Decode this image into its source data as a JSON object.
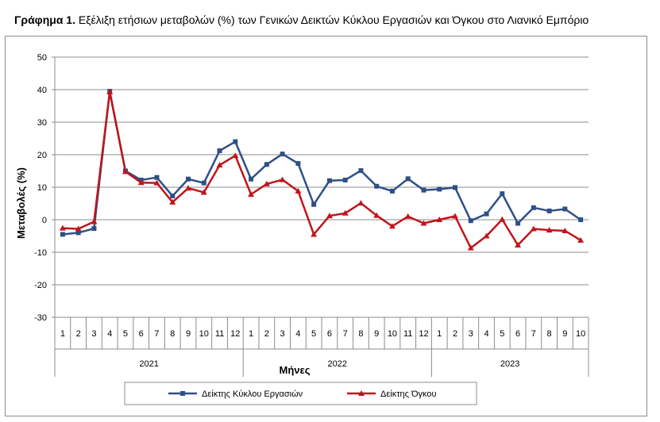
{
  "title": {
    "prefix": "Γράφημα 1.",
    "text": "Εξέλιξη ετήσιων μεταβολών (%) των Γενικών Δεικτών Κύκλου Εργασιών και Όγκου στο Λιανικό Εμπόριο"
  },
  "chart_data": {
    "type": "line",
    "ylabel": "Μεταβολές  (%)",
    "xlabel": "Μήνες",
    "ylim": [
      -30,
      50
    ],
    "yticks": [
      -30,
      -20,
      -10,
      0,
      10,
      20,
      30,
      40,
      50
    ],
    "grid": true,
    "legend_position": "bottom",
    "categories": [
      "1",
      "2",
      "3",
      "4",
      "5",
      "6",
      "7",
      "8",
      "9",
      "10",
      "11",
      "12",
      "1",
      "2",
      "3",
      "4",
      "5",
      "6",
      "7",
      "8",
      "9",
      "10",
      "11",
      "12",
      "1",
      "2",
      "3",
      "4",
      "5",
      "6",
      "7",
      "8",
      "9",
      "10"
    ],
    "years": [
      {
        "label": "2021",
        "count": 12
      },
      {
        "label": "2022",
        "count": 12
      },
      {
        "label": "2023",
        "count": 10
      }
    ],
    "series": [
      {
        "name": "Δείκτης Κύκλου Εργασιών",
        "color": "#2f4f86",
        "marker": "square",
        "values": [
          -4.5,
          -4.0,
          -2.7,
          39.5,
          15.0,
          12.2,
          13.0,
          7.3,
          12.5,
          11.3,
          21.2,
          24.0,
          12.5,
          17.0,
          20.2,
          17.3,
          4.7,
          12.0,
          12.2,
          15.1,
          10.3,
          8.8,
          12.6,
          9.1,
          9.4,
          9.9,
          -0.3,
          1.8,
          8.0,
          -1.1,
          3.7,
          2.7,
          3.3,
          0.0
        ]
      },
      {
        "name": "Δείκτης Όγκου",
        "color": "#c0151c",
        "marker": "triangle",
        "values": [
          -2.6,
          -2.8,
          -0.6,
          39.3,
          14.8,
          11.4,
          11.3,
          5.4,
          9.7,
          8.4,
          16.8,
          19.7,
          7.8,
          11.0,
          12.3,
          8.8,
          -4.5,
          1.2,
          2.0,
          5.1,
          1.3,
          -2.0,
          1.0,
          -1.1,
          0.0,
          1.1,
          -8.7,
          -5.0,
          0.1,
          -7.8,
          -2.8,
          -3.2,
          -3.4,
          -6.3
        ]
      }
    ]
  }
}
